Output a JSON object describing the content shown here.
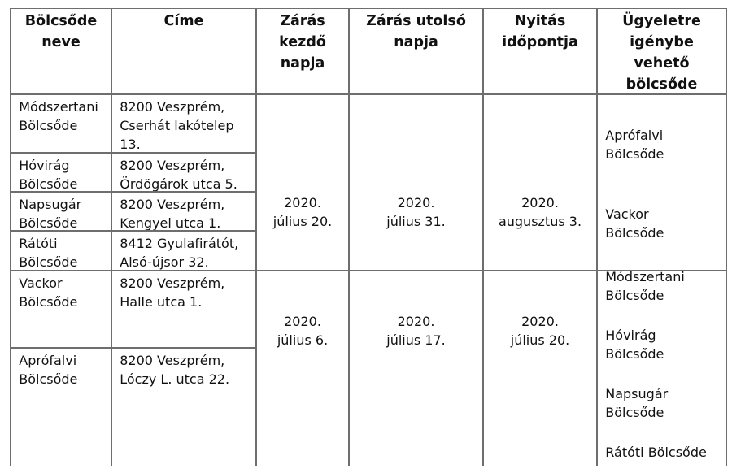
{
  "headers": [
    "Bölcsőde neve",
    "Címe",
    "Zárás kezdő napja",
    "Zárás utolsó napja",
    "Nyitás időpontja",
    "Ügyeletre igénybe vehető bölcsőde"
  ],
  "header_lines": [
    [
      "Bölcsőde",
      "neve"
    ],
    [
      "Címe"
    ],
    [
      "Zárás",
      "kezdő",
      "napja"
    ],
    [
      "Zárás utolsó",
      "napja"
    ],
    [
      "Nyitás",
      "időpontja"
    ],
    [
      "Ügyeletre",
      "igénybe",
      "vehető",
      "bölcsőde"
    ]
  ],
  "groups": [
    {
      "rows": [
        {
          "name": [
            "Módszertani",
            "Bölcsőde"
          ],
          "address": [
            "8200 Veszprém,",
            "Cserhát lakótelep",
            "13."
          ]
        },
        {
          "name": [
            "Hóvirág",
            "Bölcsőde"
          ],
          "address": [
            "8200 Veszprém,",
            "Ördögárok utca 5."
          ]
        },
        {
          "name": [
            "Napsugár",
            "Bölcsőde"
          ],
          "address": [
            "8200 Veszprém,",
            "Kengyel utca 1."
          ]
        },
        {
          "name": [
            "Rátóti",
            "Bölcsőde"
          ],
          "address": [
            "8412 Gyulafirátót,",
            "Alsó-újsor 32."
          ]
        }
      ],
      "closing_start": [
        "2020.",
        "július 20."
      ],
      "closing_end": [
        "2020.",
        "július 31."
      ],
      "opening": [
        "2020.",
        "augusztus 3."
      ],
      "substitutes": [
        [
          "Aprófalvi",
          "Bölcsőde"
        ],
        [
          "Vackor",
          "Bölcsőde"
        ]
      ]
    },
    {
      "rows": [
        {
          "name": [
            "Vackor",
            "Bölcsőde"
          ],
          "address": [
            "8200 Veszprém,",
            "Halle utca 1."
          ]
        },
        {
          "name": [
            "Aprófalvi",
            "Bölcsőde"
          ],
          "address": [
            "8200 Veszprém,",
            "Lóczy L. utca 22."
          ]
        }
      ],
      "closing_start": [
        "2020.",
        "július 6."
      ],
      "closing_end": [
        "2020.",
        "július 17."
      ],
      "opening": [
        "2020.",
        "július 20."
      ],
      "substitutes": [
        [
          "Módszertani",
          "Bölcsőde"
        ],
        [
          "Hóvirág",
          "Bölcsőde"
        ],
        [
          "Napsugár",
          "Bölcsőde"
        ],
        [
          "Rátóti Bölcsőde"
        ]
      ]
    }
  ]
}
